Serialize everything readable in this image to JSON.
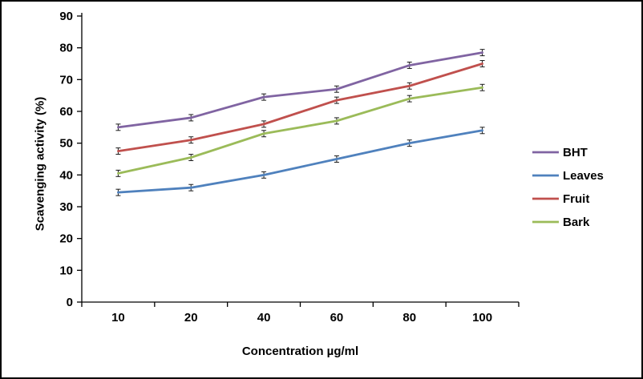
{
  "chart_data": {
    "type": "line",
    "categories": [
      "10",
      "20",
      "40",
      "60",
      "80",
      "100"
    ],
    "series": [
      {
        "name": "BHT",
        "color": "#8064A2",
        "values": [
          55,
          58,
          64.5,
          67,
          74.5,
          78.5
        ]
      },
      {
        "name": "Leaves",
        "color": "#4F81BD",
        "values": [
          34.5,
          36,
          40,
          45,
          50,
          54
        ]
      },
      {
        "name": "Fruit",
        "color": "#C0504D",
        "values": [
          47.5,
          51,
          56,
          63.5,
          68,
          75
        ]
      },
      {
        "name": "Bark",
        "color": "#9BBB59",
        "values": [
          40.5,
          45.5,
          53,
          57,
          64,
          67.5
        ]
      }
    ],
    "title": "",
    "xlabel": "Concentration µg/ml",
    "ylabel": "Scavenging activity (%)",
    "ylim": [
      0,
      90
    ],
    "ytick_step": 10,
    "grid": false,
    "legend_position": "right",
    "error_bar_value": 1,
    "axis_color": "#000000",
    "error_bar_color": "#1a1a1a"
  }
}
